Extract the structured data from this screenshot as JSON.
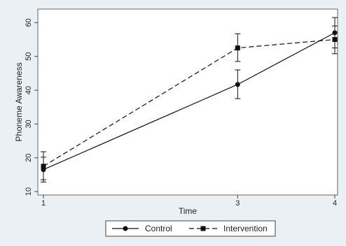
{
  "chart_data": {
    "type": "line",
    "xlabel": "Time",
    "ylabel": "Phoneme Awareness",
    "x": [
      1,
      3,
      4
    ],
    "x_ticks": [
      "1",
      "3",
      "4"
    ],
    "y_ticks": [
      "10",
      "20",
      "30",
      "40",
      "50",
      "60"
    ],
    "xlim": [
      1,
      4
    ],
    "ylim": [
      9,
      64
    ],
    "grid": false,
    "legend_position": "bottom",
    "series": [
      {
        "name": "Control",
        "marker": "circle",
        "line_style": "solid",
        "values": [
          16.5,
          41.7,
          57.0
        ],
        "error_low": [
          12.8,
          37.5,
          52.5
        ],
        "error_high": [
          20.2,
          46.0,
          61.5
        ],
        "color": "#111111"
      },
      {
        "name": "Intervention",
        "marker": "square",
        "line_style": "dashed",
        "values": [
          17.5,
          52.5,
          55.0
        ],
        "error_low": [
          13.5,
          48.5,
          50.8
        ],
        "error_high": [
          21.8,
          56.7,
          59.0
        ],
        "color": "#111111"
      }
    ]
  },
  "colors": {
    "background": "#eaf0f3",
    "plot_area": "#ffffff",
    "ink": "#111111"
  }
}
